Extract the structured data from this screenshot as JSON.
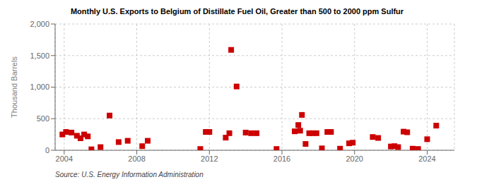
{
  "chart_data": {
    "type": "scatter",
    "title": "Monthly U.S. Exports to Belgium of Distillate Fuel Oil, Greater than 500 to 2000 ppm Sulfur",
    "ylabel": "Thousand Barrels",
    "annotations": [
      "Source: U.S. Energy Information Administration"
    ],
    "color": "#cc0000",
    "marker": "square",
    "grid": true,
    "xlim": [
      2003.5,
      2025.5
    ],
    "xticks": [
      2004,
      2008,
      2012,
      2016,
      2020,
      2024
    ],
    "ylim": [
      0,
      2000
    ],
    "yticks": [
      0,
      500,
      {
        "value": 1000,
        "label": "1,000"
      },
      {
        "value": 1500,
        "label": "1,500"
      },
      {
        "value": 2000,
        "label": "2,000"
      }
    ],
    "x": [
      2003.9,
      2004.1,
      2004.4,
      2004.7,
      2004.9,
      2005.1,
      2005.3,
      2005.5,
      2006.0,
      2006.5,
      2007.0,
      2007.5,
      2008.3,
      2008.6,
      2011.5,
      2011.8,
      2012.0,
      2012.9,
      2013.1,
      2013.2,
      2013.5,
      2014.0,
      2014.3,
      2014.6,
      2015.7,
      2016.7,
      2016.9,
      2017.0,
      2017.1,
      2017.3,
      2017.5,
      2017.7,
      2017.9,
      2018.2,
      2018.5,
      2018.7,
      2019.2,
      2019.7,
      2019.9,
      2021.0,
      2021.3,
      2022.0,
      2022.2,
      2022.4,
      2022.7,
      2022.9,
      2023.2,
      2023.5,
      2024.0,
      2024.5
    ],
    "values": [
      250,
      290,
      280,
      230,
      190,
      250,
      220,
      15,
      50,
      550,
      130,
      150,
      65,
      150,
      20,
      290,
      290,
      200,
      270,
      1590,
      1010,
      280,
      270,
      270,
      20,
      300,
      400,
      310,
      560,
      100,
      270,
      270,
      270,
      30,
      290,
      290,
      25,
      110,
      120,
      210,
      195,
      60,
      65,
      50,
      295,
      285,
      25,
      20,
      175,
      390
    ]
  }
}
